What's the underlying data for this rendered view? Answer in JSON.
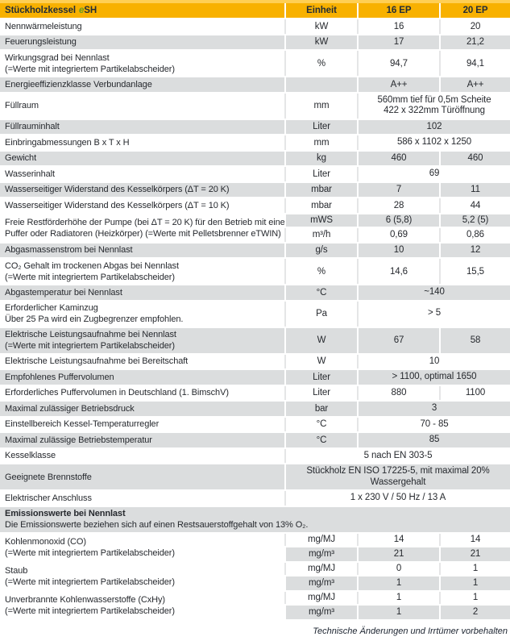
{
  "colors": {
    "header_gold": "#f8b100",
    "top_strip_gold": "#ffcf54",
    "row_gray": "#dbddde",
    "accent_green": "#649c21",
    "text_dark": "#26292e"
  },
  "header": {
    "title_prefix": "Stückholzkessel",
    "title_e": "e",
    "title_suffix": "SH",
    "columns": [
      "Einheit",
      "16 EP",
      "20 EP"
    ]
  },
  "table": {
    "rows": [
      {
        "type": "pair",
        "shade": "w",
        "label": [
          "Nennwärmeleistung"
        ],
        "unit": "kW",
        "values": [
          "16",
          "20"
        ]
      },
      {
        "type": "pair",
        "shade": "g",
        "label": [
          "Feuerungsleistung"
        ],
        "unit": "kW",
        "values": [
          "17",
          "21,2"
        ]
      },
      {
        "type": "pair",
        "shade": "w",
        "label": [
          "Wirkungsgrad bei Nennlast",
          "(=Werte mit integriertem Partikelabscheider)"
        ],
        "unit": "%",
        "values": [
          "94,7",
          "94,1"
        ]
      },
      {
        "type": "pair",
        "shade": "g",
        "label": [
          "Energieeffizienzklasse Verbundanlage"
        ],
        "unit": "",
        "values": [
          "A++",
          "A++"
        ]
      },
      {
        "type": "span",
        "shade": "w",
        "label": [
          "Füllraum"
        ],
        "unit": "mm",
        "value_lines": [
          "560mm tief für 0,5m Scheite",
          "422 x 322mm Türöffnung"
        ]
      },
      {
        "type": "span",
        "shade": "g",
        "label": [
          "Füllrauminhalt"
        ],
        "unit": "Liter",
        "value_lines": [
          "102"
        ]
      },
      {
        "type": "span",
        "shade": "w",
        "label": [
          "Einbringabmessungen B x T x H"
        ],
        "unit": "mm",
        "value_lines": [
          "586 x 1102 x 1250"
        ]
      },
      {
        "type": "pair",
        "shade": "g",
        "label": [
          "Gewicht"
        ],
        "unit": "kg",
        "values": [
          "460",
          "460"
        ]
      },
      {
        "type": "span",
        "shade": "w",
        "label": [
          "Wasserinhalt"
        ],
        "unit": "Liter",
        "value_lines": [
          "69"
        ]
      },
      {
        "type": "pair",
        "shade": "g",
        "label": [
          "Wasserseitiger Widerstand des Kesselkörpers (ΔT = 20 K)"
        ],
        "unit": "mbar",
        "values": [
          "7",
          "11"
        ]
      },
      {
        "type": "pair",
        "shade": "w",
        "label": [
          "Wasserseitiger Widerstand des Kesselkörpers (ΔT = 10 K)"
        ],
        "unit": "mbar",
        "values": [
          "28",
          "44"
        ]
      },
      {
        "type": "dual",
        "label_shade": "w",
        "label": [
          "Freie Restförderhöhe der Pumpe (bei ΔT = 20 K) für den Betrieb mit einem",
          "Puffer oder Radiatoren (Heizkörper) (=Werte mit Pelletsbrenner eTWIN)"
        ],
        "subrows": [
          {
            "shade": "g",
            "unit": "mWS",
            "values": [
              "6 (5,8)",
              "5,2 (5)"
            ]
          },
          {
            "shade": "w",
            "unit": "m³/h",
            "values": [
              "0,69",
              "0,86"
            ]
          }
        ]
      },
      {
        "type": "pair",
        "shade": "g",
        "label": [
          "Abgasmassenstrom bei Nennlast"
        ],
        "unit": "g/s",
        "values": [
          "10",
          "12"
        ]
      },
      {
        "type": "pair",
        "shade": "w",
        "label": [
          "CO₂ Gehalt im trockenen Abgas bei Nennlast",
          "(=Werte mit integriertem Partikelabscheider)"
        ],
        "unit": "%",
        "values": [
          "14,6",
          "15,5"
        ]
      },
      {
        "type": "span",
        "shade": "g",
        "label": [
          "Abgastemperatur bei Nennlast"
        ],
        "unit": "°C",
        "value_lines": [
          "~140"
        ]
      },
      {
        "type": "span",
        "shade": "w",
        "label": [
          "Erforderlicher Kaminzug",
          "Über 25 Pa wird ein Zugbegrenzer empfohlen."
        ],
        "unit": "Pa",
        "value_lines": [
          "> 5"
        ]
      },
      {
        "type": "pair",
        "shade": "g",
        "label": [
          "Elektrische Leistungsaufnahme bei Nennlast",
          "(=Werte mit integriertem Partikelabscheider)"
        ],
        "unit": "W",
        "values": [
          "67",
          "58"
        ]
      },
      {
        "type": "span",
        "shade": "w",
        "label": [
          "Elektrische Leistungsaufnahme bei Bereitschaft"
        ],
        "unit": "W",
        "value_lines": [
          "10"
        ]
      },
      {
        "type": "span",
        "shade": "g",
        "label": [
          "Empfohlenes Puffervolumen"
        ],
        "unit": "Liter",
        "value_lines": [
          "> 1100, optimal 1650"
        ]
      },
      {
        "type": "pair",
        "shade": "w",
        "label": [
          "Erforderliches Puffervolumen in Deutschland (1. BimschV)"
        ],
        "unit": "Liter",
        "values": [
          "880",
          "1100"
        ]
      },
      {
        "type": "span",
        "shade": "g",
        "label": [
          "Maximal zulässiger Betriebsdruck"
        ],
        "unit": "bar",
        "value_lines": [
          "3"
        ]
      },
      {
        "type": "span",
        "shade": "w",
        "label": [
          "Einstellbereich Kessel-Temperaturregler"
        ],
        "unit": "°C",
        "value_lines": [
          "70 - 85"
        ]
      },
      {
        "type": "span",
        "shade": "g",
        "label": [
          "Maximal zulässige Betriebstemperatur"
        ],
        "unit": "°C",
        "value_lines": [
          "85"
        ]
      },
      {
        "type": "full",
        "shade": "w",
        "label": [
          "Kesselklasse"
        ],
        "value_lines": [
          "5 nach EN 303-5"
        ]
      },
      {
        "type": "full",
        "shade": "g",
        "label": [
          "Geeignete Brennstoffe"
        ],
        "value_lines": [
          "Stückholz EN ISO 17225-5, mit maximal 20%",
          "Wassergehalt"
        ]
      },
      {
        "type": "full",
        "shade": "w",
        "label": [
          "Elektrischer Anschluss"
        ],
        "value_lines": [
          "1 x 230 V / 50 Hz / 13 A"
        ]
      },
      {
        "type": "section",
        "shade": "g",
        "lines": [
          "Emissionswerte bei Nennlast",
          "Die Emissionswerte beziehen sich auf einen Restsauerstoffgehalt von 13% O₂."
        ]
      },
      {
        "type": "dual",
        "label_shade": "w",
        "label": [
          "Kohlenmonoxid (CO)",
          "(=Werte mit integriertem Partikelabscheider)"
        ],
        "subrows": [
          {
            "shade": "w",
            "unit": "mg/MJ",
            "values": [
              "14",
              "14"
            ]
          },
          {
            "shade": "g",
            "unit": "mg/m³",
            "values": [
              "21",
              "21"
            ]
          }
        ]
      },
      {
        "type": "dual",
        "label_shade": "w",
        "label": [
          "Staub",
          "(=Werte mit integriertem Partikelabscheider)"
        ],
        "subrows": [
          {
            "shade": "w",
            "unit": "mg/MJ",
            "values": [
              "0",
              "1"
            ]
          },
          {
            "shade": "g",
            "unit": "mg/m³",
            "values": [
              "1",
              "1"
            ]
          }
        ]
      },
      {
        "type": "dual",
        "label_shade": "w",
        "label": [
          "Unverbrannte Kohlenwasserstoffe (CxHy)",
          "(=Werte mit integriertem Partikelabscheider)"
        ],
        "subrows": [
          {
            "shade": "w",
            "unit": "mg/MJ",
            "values": [
              "1",
              "1"
            ]
          },
          {
            "shade": "g",
            "unit": "mg/m³",
            "values": [
              "1",
              "2"
            ]
          }
        ]
      }
    ]
  },
  "footer": {
    "note": "Technische Änderungen und Irrtümer vorbehalten"
  }
}
